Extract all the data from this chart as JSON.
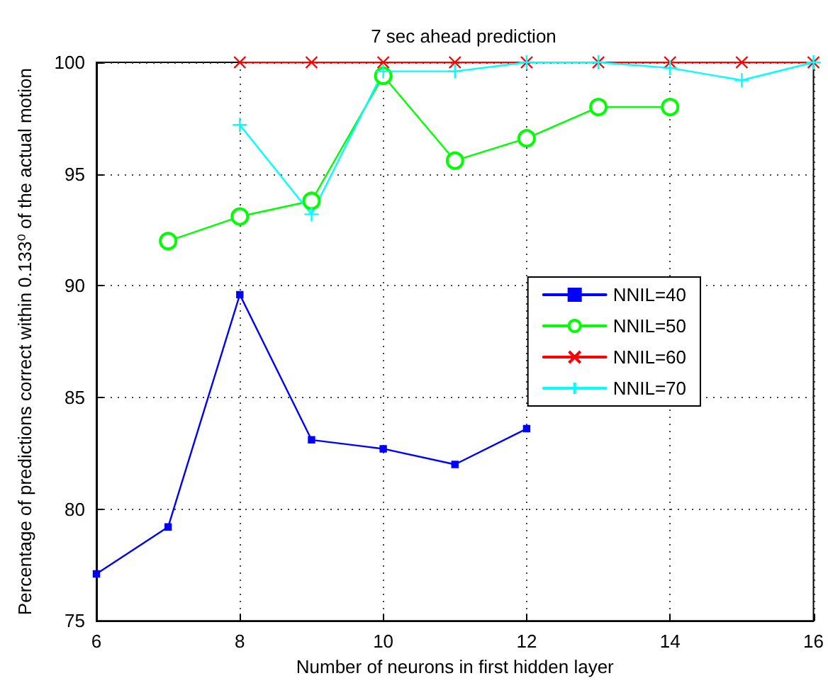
{
  "chart_data": {
    "type": "line",
    "title": "7 sec ahead prediction",
    "xlabel": "Number of neurons in first hidden layer",
    "ylabel": "Percentage of predictions correct within 0.133⁰ of the actual motion",
    "x": [
      6,
      7,
      8,
      9,
      10,
      11,
      12,
      13,
      14,
      15,
      16
    ],
    "series": [
      {
        "name": "NNIL=40",
        "color": "#0000ff",
        "marker": "square",
        "values": [
          77.1,
          79.2,
          89.6,
          83.1,
          82.7,
          82.0,
          83.6,
          null,
          null,
          null,
          null
        ]
      },
      {
        "name": "NNIL=50",
        "color": "#00ff00",
        "marker": "circle",
        "values": [
          null,
          92.0,
          93.1,
          93.8,
          99.4,
          95.6,
          96.6,
          98.0,
          98.0,
          null,
          null
        ]
      },
      {
        "name": "NNIL=60",
        "color": "#ff0000",
        "marker": "cross",
        "values": [
          null,
          null,
          100,
          100,
          100,
          100,
          100,
          100,
          100,
          100,
          100
        ]
      },
      {
        "name": "NNIL=70",
        "color": "#00ffff",
        "marker": "plus",
        "values": [
          null,
          null,
          97.2,
          93.2,
          99.6,
          99.6,
          100,
          100,
          99.75,
          99.2,
          100
        ]
      }
    ],
    "xlim": [
      6,
      16
    ],
    "xticks": [
      6,
      8,
      10,
      12,
      14,
      16
    ],
    "ylim": [
      75,
      100
    ],
    "yticks": [
      75,
      80,
      85,
      90,
      95,
      100
    ],
    "grid": true,
    "legend": "right",
    "line_style": "solid"
  }
}
